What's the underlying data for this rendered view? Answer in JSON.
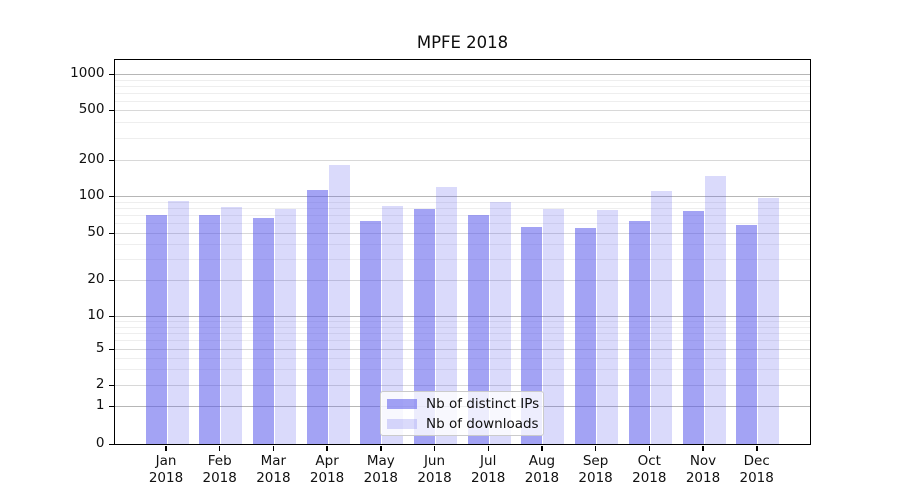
{
  "title": "MPFE 2018",
  "legend": {
    "items": [
      {
        "label": "Nb of distinct IPs",
        "color": "rgba(88,88,235,0.55)"
      },
      {
        "label": "Nb of downloads",
        "color": "rgba(88,88,235,0.22)"
      }
    ]
  },
  "y_axis": {
    "tick_labels": [
      "1000",
      "500",
      "200",
      "100",
      "50",
      "20",
      "10",
      "5",
      "2",
      "1",
      "0"
    ]
  },
  "x_axis": {
    "months": [
      "Jan",
      "Feb",
      "Mar",
      "Apr",
      "May",
      "Jun",
      "Jul",
      "Aug",
      "Sep",
      "Oct",
      "Nov",
      "Dec"
    ],
    "year": "2018"
  },
  "chart_data": {
    "type": "bar",
    "title": "MPFE 2018",
    "categories": [
      "Jan 2018",
      "Feb 2018",
      "Mar 2018",
      "Apr 2018",
      "May 2018",
      "Jun 2018",
      "Jul 2018",
      "Aug 2018",
      "Sep 2018",
      "Oct 2018",
      "Nov 2018",
      "Dec 2018"
    ],
    "series": [
      {
        "name": "Nb of distinct IPs",
        "color": "rgba(88,88,235,0.55)",
        "values": [
          70,
          70,
          66,
          112,
          63,
          79,
          70,
          56,
          55,
          63,
          76,
          58
        ]
      },
      {
        "name": "Nb of downloads",
        "color": "rgba(88,88,235,0.22)",
        "values": [
          91,
          81,
          79,
          183,
          83,
          119,
          90,
          78,
          77,
          111,
          147,
          97
        ]
      }
    ],
    "xlabel": "",
    "ylabel": "",
    "yscale": "symlog",
    "yticks": [
      0,
      1,
      2,
      5,
      10,
      20,
      50,
      100,
      200,
      500,
      1000
    ],
    "ylim": [
      0,
      1300
    ],
    "grid": true,
    "legend_position": "lower center"
  }
}
